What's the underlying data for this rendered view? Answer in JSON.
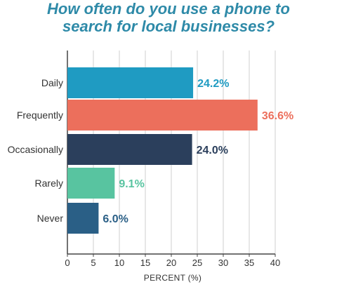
{
  "title": [
    "How often do you use a phone to",
    "search for local businesses?"
  ],
  "xlabel": "PERCENT (%)",
  "colors": {
    "title": "#2e8aa8",
    "axis": "#444444",
    "grid": "#cfcfcf"
  },
  "chart_data": {
    "type": "bar",
    "orientation": "horizontal",
    "title": "How often do you use a phone to search for local businesses?",
    "xlabel": "PERCENT (%)",
    "ylabel": "",
    "categories": [
      "Daily",
      "Frequently",
      "Occasionally",
      "Rarely",
      "Never"
    ],
    "values": [
      24.2,
      36.6,
      24.0,
      9.1,
      6.0
    ],
    "value_labels": [
      "24.2%",
      "36.6%",
      "24.0%",
      "9.1%",
      "6.0%"
    ],
    "bar_colors": [
      "#1f9bc2",
      "#ec6f5c",
      "#2b3f5c",
      "#58c4a0",
      "#2a5f86"
    ],
    "label_colors": [
      "#1f9bc2",
      "#ec6f5c",
      "#2b3f5c",
      "#58c4a0",
      "#2a5f86"
    ],
    "xlim": [
      0,
      40
    ],
    "xticks": [
      0,
      5,
      10,
      15,
      20,
      25,
      30,
      35,
      40
    ],
    "grid": true
  }
}
